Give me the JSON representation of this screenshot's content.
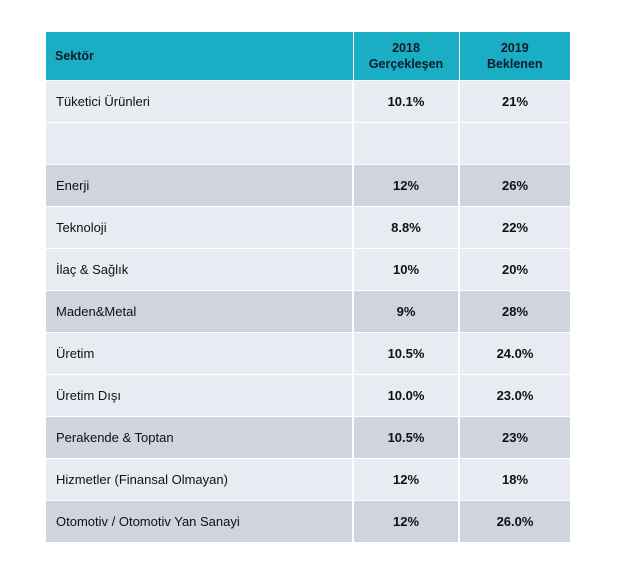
{
  "table": {
    "headers": {
      "sector": "Sektör",
      "col2_line1": "2018",
      "col2_line2": "Gerçekleşen",
      "col3_line1": "2019",
      "col3_line2": "Beklenen"
    },
    "rows": [
      {
        "sector": "Tüketici Ürünleri",
        "v2018": "10.1%",
        "v2019": "21%",
        "shade": "light"
      },
      {
        "sector": "",
        "v2018": "",
        "v2019": "",
        "shade": "light"
      },
      {
        "sector": "Enerji",
        "v2018": "12%",
        "v2019": "26%",
        "shade": "dark"
      },
      {
        "sector": "Teknoloji",
        "v2018": "8.8%",
        "v2019": "22%",
        "shade": "light"
      },
      {
        "sector": "İlaç & Sağlık",
        "v2018": "10%",
        "v2019": "20%",
        "shade": "light"
      },
      {
        "sector": "Maden&Metal",
        "v2018": "9%",
        "v2019": "28%",
        "shade": "dark"
      },
      {
        "sector": "Üretim",
        "v2018": "10.5%",
        "v2019": "24.0%",
        "shade": "light"
      },
      {
        "sector": " Üretim Dışı",
        "v2018": "10.0%",
        "v2019": "23.0%",
        "shade": "light"
      },
      {
        "sector": "Perakende & Toptan",
        "v2018": "10.5%",
        "v2019": "23%",
        "shade": "dark"
      },
      {
        "sector": "Hizmetler (Finansal Olmayan)",
        "v2018": "12%",
        "v2019": "18%",
        "shade": "light"
      },
      {
        "sector": "Otomotiv / Otomotiv Yan Sanayi",
        "v2018": "12%",
        "v2019": "26.0%",
        "shade": "dark"
      }
    ]
  },
  "colors": {
    "header_bg": "#1aaec4",
    "row_light": "#e9ebf3",
    "row_dark": "#cfd4de"
  }
}
